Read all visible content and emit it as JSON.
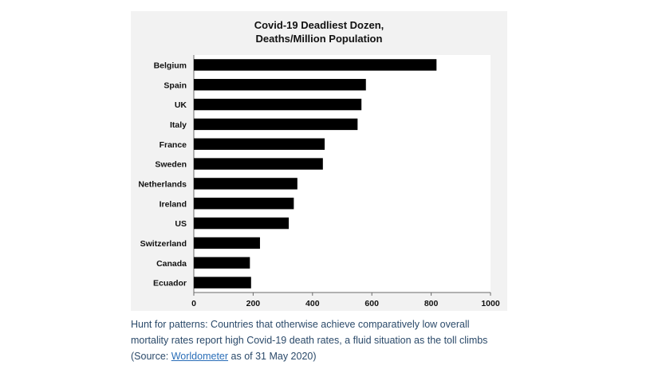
{
  "chart_data": {
    "type": "bar",
    "orientation": "horizontal",
    "title": [
      "Covid-19 Deadliest Dozen,",
      "Deaths/Million Population"
    ],
    "categories": [
      "Belgium",
      "Spain",
      "UK",
      "Italy",
      "France",
      "Sweden",
      "Netherlands",
      "Ireland",
      "US",
      "Switzerland",
      "Canada",
      "Ecuador"
    ],
    "values": [
      818,
      580,
      565,
      552,
      441,
      435,
      349,
      337,
      320,
      223,
      189,
      193
    ],
    "xlim": [
      0,
      1000
    ],
    "xticks": [
      "0",
      "200",
      "400",
      "600",
      "800",
      "1000"
    ],
    "bar_color": "#000000",
    "grid": false,
    "legend": "none"
  },
  "caption": {
    "line1": "Hunt for patterns: Countries that otherwise achieve comparatively low overall",
    "line2": "mortality rates report high Covid-19 death rates, a fluid situation as the toll climbs",
    "source_prefix": "(Source: ",
    "source_link": "Worldometer",
    "source_suffix": " as of 31 May 2020)"
  }
}
